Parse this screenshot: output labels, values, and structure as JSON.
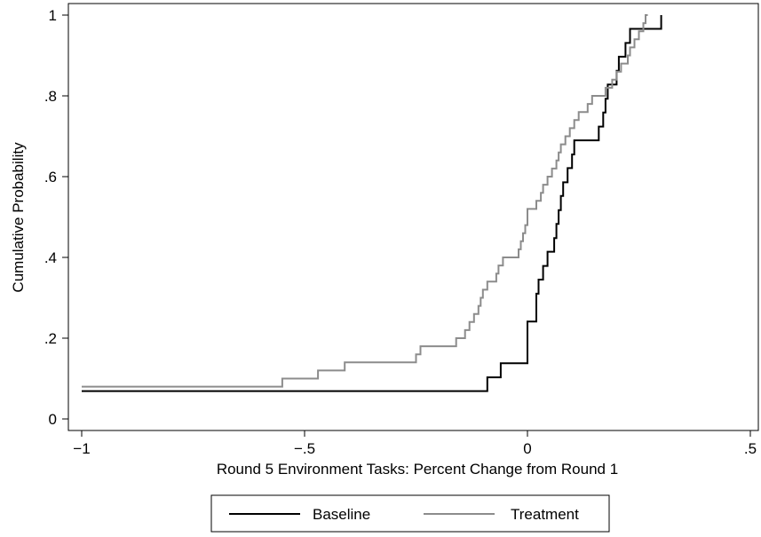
{
  "chart_data": {
    "type": "line",
    "step": true,
    "xlabel": "Round 5 Environment Tasks: Percent Change from Round 1",
    "ylabel": "Cumulative Probability",
    "xlim": [
      -1,
      0.5
    ],
    "ylim": [
      0,
      1
    ],
    "x_ticks": [
      {
        "value": -1,
        "label": "−1"
      },
      {
        "value": -0.5,
        "label": "−.5"
      },
      {
        "value": 0,
        "label": "0"
      },
      {
        "value": 0.5,
        "label": ".5"
      }
    ],
    "y_ticks": [
      {
        "value": 0,
        "label": "0"
      },
      {
        "value": 0.2,
        "label": ".2"
      },
      {
        "value": 0.4,
        "label": ".4"
      },
      {
        "value": 0.6,
        "label": ".6"
      },
      {
        "value": 0.8,
        "label": ".8"
      },
      {
        "value": 1,
        "label": "1"
      }
    ],
    "grid": false,
    "legend": {
      "position": "bottom",
      "frame": true
    },
    "series": [
      {
        "name": "Baseline",
        "color": "#000000",
        "points": [
          [
            -1,
            0.069
          ],
          [
            -0.09,
            0.069
          ],
          [
            -0.09,
            0.103
          ],
          [
            -0.06,
            0.103
          ],
          [
            -0.06,
            0.138
          ],
          [
            0,
            0.138
          ],
          [
            0,
            0.241
          ],
          [
            0.02,
            0.241
          ],
          [
            0.02,
            0.31
          ],
          [
            0.025,
            0.31
          ],
          [
            0.025,
            0.345
          ],
          [
            0.035,
            0.345
          ],
          [
            0.035,
            0.379
          ],
          [
            0.045,
            0.379
          ],
          [
            0.045,
            0.414
          ],
          [
            0.06,
            0.414
          ],
          [
            0.06,
            0.448
          ],
          [
            0.065,
            0.448
          ],
          [
            0.065,
            0.483
          ],
          [
            0.07,
            0.483
          ],
          [
            0.07,
            0.517
          ],
          [
            0.075,
            0.517
          ],
          [
            0.075,
            0.552
          ],
          [
            0.08,
            0.552
          ],
          [
            0.08,
            0.586
          ],
          [
            0.09,
            0.586
          ],
          [
            0.09,
            0.621
          ],
          [
            0.1,
            0.621
          ],
          [
            0.1,
            0.655
          ],
          [
            0.105,
            0.655
          ],
          [
            0.105,
            0.69
          ],
          [
            0.16,
            0.69
          ],
          [
            0.16,
            0.724
          ],
          [
            0.17,
            0.724
          ],
          [
            0.17,
            0.759
          ],
          [
            0.175,
            0.759
          ],
          [
            0.175,
            0.793
          ],
          [
            0.18,
            0.793
          ],
          [
            0.18,
            0.828
          ],
          [
            0.2,
            0.828
          ],
          [
            0.2,
            0.862
          ],
          [
            0.205,
            0.862
          ],
          [
            0.205,
            0.897
          ],
          [
            0.22,
            0.897
          ],
          [
            0.22,
            0.931
          ],
          [
            0.23,
            0.931
          ],
          [
            0.23,
            0.966
          ],
          [
            0.3,
            0.966
          ],
          [
            0.3,
            1.0
          ]
        ]
      },
      {
        "name": "Treatment",
        "color": "#8c8c8c",
        "points": [
          [
            -1,
            0.08
          ],
          [
            -0.55,
            0.08
          ],
          [
            -0.55,
            0.1
          ],
          [
            -0.47,
            0.1
          ],
          [
            -0.47,
            0.12
          ],
          [
            -0.41,
            0.12
          ],
          [
            -0.41,
            0.14
          ],
          [
            -0.25,
            0.14
          ],
          [
            -0.25,
            0.16
          ],
          [
            -0.24,
            0.16
          ],
          [
            -0.24,
            0.18
          ],
          [
            -0.16,
            0.18
          ],
          [
            -0.16,
            0.2
          ],
          [
            -0.14,
            0.2
          ],
          [
            -0.14,
            0.22
          ],
          [
            -0.13,
            0.22
          ],
          [
            -0.13,
            0.24
          ],
          [
            -0.12,
            0.24
          ],
          [
            -0.12,
            0.26
          ],
          [
            -0.11,
            0.26
          ],
          [
            -0.11,
            0.28
          ],
          [
            -0.105,
            0.28
          ],
          [
            -0.105,
            0.3
          ],
          [
            -0.1,
            0.3
          ],
          [
            -0.1,
            0.32
          ],
          [
            -0.09,
            0.32
          ],
          [
            -0.09,
            0.34
          ],
          [
            -0.07,
            0.34
          ],
          [
            -0.07,
            0.36
          ],
          [
            -0.065,
            0.36
          ],
          [
            -0.065,
            0.38
          ],
          [
            -0.055,
            0.38
          ],
          [
            -0.055,
            0.4
          ],
          [
            -0.02,
            0.4
          ],
          [
            -0.02,
            0.42
          ],
          [
            -0.015,
            0.42
          ],
          [
            -0.015,
            0.44
          ],
          [
            -0.01,
            0.44
          ],
          [
            -0.01,
            0.46
          ],
          [
            -0.005,
            0.46
          ],
          [
            -0.005,
            0.48
          ],
          [
            0,
            0.48
          ],
          [
            0,
            0.52
          ],
          [
            0.02,
            0.52
          ],
          [
            0.02,
            0.54
          ],
          [
            0.03,
            0.54
          ],
          [
            0.03,
            0.56
          ],
          [
            0.035,
            0.56
          ],
          [
            0.035,
            0.58
          ],
          [
            0.045,
            0.58
          ],
          [
            0.045,
            0.6
          ],
          [
            0.055,
            0.6
          ],
          [
            0.055,
            0.62
          ],
          [
            0.065,
            0.62
          ],
          [
            0.065,
            0.64
          ],
          [
            0.07,
            0.64
          ],
          [
            0.07,
            0.66
          ],
          [
            0.075,
            0.66
          ],
          [
            0.075,
            0.68
          ],
          [
            0.085,
            0.68
          ],
          [
            0.085,
            0.7
          ],
          [
            0.095,
            0.7
          ],
          [
            0.095,
            0.72
          ],
          [
            0.105,
            0.72
          ],
          [
            0.105,
            0.74
          ],
          [
            0.115,
            0.74
          ],
          [
            0.115,
            0.76
          ],
          [
            0.135,
            0.76
          ],
          [
            0.135,
            0.78
          ],
          [
            0.145,
            0.78
          ],
          [
            0.145,
            0.8
          ],
          [
            0.175,
            0.8
          ],
          [
            0.175,
            0.82
          ],
          [
            0.19,
            0.82
          ],
          [
            0.19,
            0.84
          ],
          [
            0.2,
            0.84
          ],
          [
            0.2,
            0.86
          ],
          [
            0.21,
            0.86
          ],
          [
            0.21,
            0.88
          ],
          [
            0.225,
            0.88
          ],
          [
            0.225,
            0.9
          ],
          [
            0.23,
            0.9
          ],
          [
            0.23,
            0.92
          ],
          [
            0.24,
            0.92
          ],
          [
            0.24,
            0.94
          ],
          [
            0.25,
            0.94
          ],
          [
            0.25,
            0.96
          ],
          [
            0.26,
            0.96
          ],
          [
            0.26,
            0.98
          ],
          [
            0.265,
            0.98
          ],
          [
            0.265,
            1.0
          ],
          [
            0.27,
            1.0
          ]
        ]
      }
    ]
  }
}
